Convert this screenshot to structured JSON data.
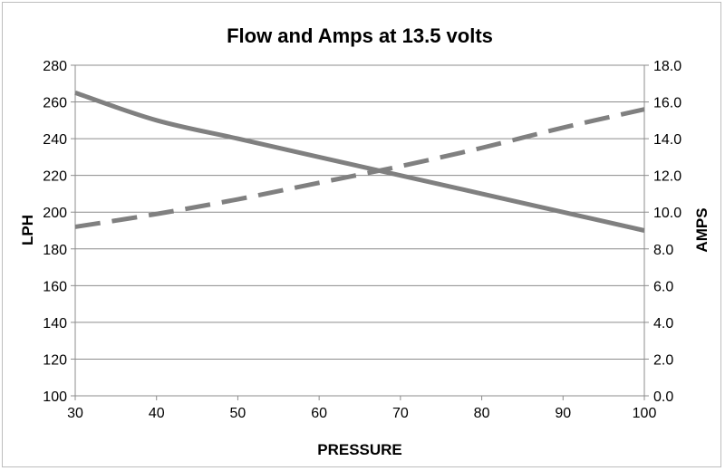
{
  "chart_data": {
    "type": "line",
    "title": "Flow and Amps at 13.5 volts",
    "xlabel": "PRESSURE",
    "ylabel": "LPH",
    "y2label": "AMPS",
    "x": [
      30,
      40,
      50,
      60,
      70,
      80,
      90,
      100
    ],
    "xlim": [
      30,
      100
    ],
    "xticks": [
      "30",
      "40",
      "50",
      "60",
      "70",
      "80",
      "90",
      "100"
    ],
    "ylim": [
      100,
      280
    ],
    "yticks": [
      "100",
      "120",
      "140",
      "160",
      "180",
      "200",
      "220",
      "240",
      "260",
      "280"
    ],
    "y2lim": [
      0,
      18
    ],
    "y2ticks": [
      "0.0",
      "2.0",
      "4.0",
      "6.0",
      "8.0",
      "10.0",
      "12.0",
      "14.0",
      "16.0",
      "18.0"
    ],
    "grid": true,
    "series": [
      {
        "axis": "left",
        "style": "solid",
        "color": "#808080",
        "values": [
          265,
          250,
          240,
          230,
          220,
          210,
          200,
          190
        ]
      },
      {
        "axis": "right",
        "style": "dashed",
        "color": "#808080",
        "values": [
          9.2,
          9.9,
          10.7,
          11.6,
          12.5,
          13.5,
          14.6,
          15.6
        ]
      }
    ]
  }
}
